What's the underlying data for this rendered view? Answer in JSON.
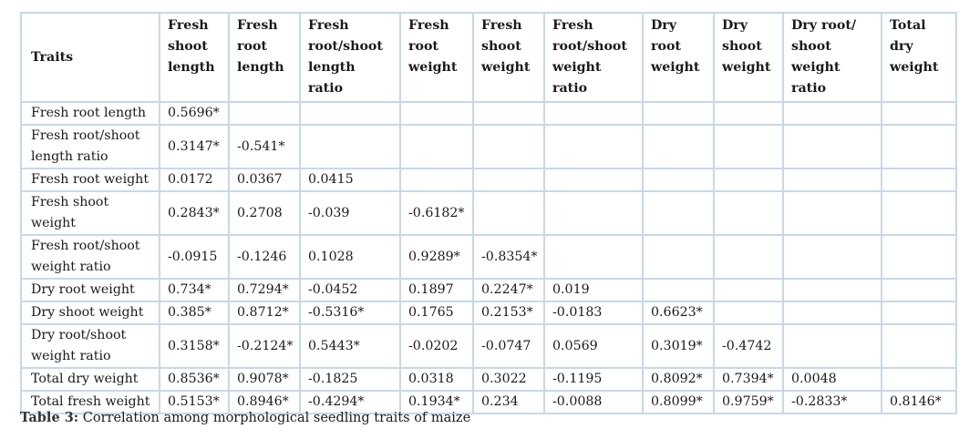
{
  "table": {
    "header_traits": "Traits",
    "headers": [
      "Fresh shoot length",
      "Fresh root length",
      "Fresh root/shoot length ratio",
      "Fresh root weight",
      "Fresh shoot weight",
      "Fresh root/shoot weight ratio",
      "Dry root weight",
      "Dry shoot weight",
      "Dry root/ shoot weight ratio",
      "Total dry weight"
    ],
    "rows": [
      {
        "label": "Fresh root length",
        "cells": [
          "0.5696*",
          "",
          "",
          "",
          "",
          "",
          "",
          "",
          "",
          ""
        ]
      },
      {
        "label": "Fresh root/shoot length ratio",
        "cells": [
          "0.3147*",
          "-0.541*",
          "",
          "",
          "",
          "",
          "",
          "",
          "",
          ""
        ]
      },
      {
        "label": "Fresh root weight",
        "cells": [
          "0.0172",
          "0.0367",
          "0.0415",
          "",
          "",
          "",
          "",
          "",
          "",
          ""
        ]
      },
      {
        "label": "Fresh shoot weight",
        "cells": [
          "0.2843*",
          "0.2708",
          "-0.039",
          "-0.6182*",
          "",
          "",
          "",
          "",
          "",
          ""
        ]
      },
      {
        "label": "Fresh root/shoot weight ratio",
        "cells": [
          "-0.0915",
          "-0.1246",
          "0.1028",
          "0.9289*",
          "-0.8354*",
          "",
          "",
          "",
          "",
          ""
        ]
      },
      {
        "label": "Dry root weight",
        "cells": [
          "0.734*",
          "0.7294*",
          "-0.0452",
          "0.1897",
          "0.2247*",
          "0.019",
          "",
          "",
          "",
          ""
        ]
      },
      {
        "label": "Dry shoot weight",
        "cells": [
          "0.385*",
          "0.8712*",
          "-0.5316*",
          "0.1765",
          "0.2153*",
          "-0.0183",
          "0.6623*",
          "",
          "",
          ""
        ]
      },
      {
        "label": "Dry root/shoot weight ratio",
        "cells": [
          "0.3158*",
          "-0.2124*",
          "0.5443*",
          "-0.0202",
          "-0.0747",
          "0.0569",
          "0.3019*",
          "-0.4742",
          "",
          ""
        ]
      },
      {
        "label": "Total dry weight",
        "cells": [
          "0.8536*",
          "0.9078*",
          "-0.1825",
          "0.0318",
          "0.3022",
          "-0.1195",
          "0.8092*",
          "0.7394*",
          "0.0048",
          ""
        ]
      },
      {
        "label": "Total fresh weight",
        "cells": [
          "0.5153*",
          "0.8946*",
          "-0.4294*",
          "0.1934*",
          "0.234",
          "-0.0088",
          "0.8099*",
          "0.9759*",
          "-0.2833*",
          "0.8146*"
        ]
      }
    ]
  },
  "caption": {
    "label": "Table 3:",
    "text": " Correlation among morphological seedling traits of maize"
  }
}
